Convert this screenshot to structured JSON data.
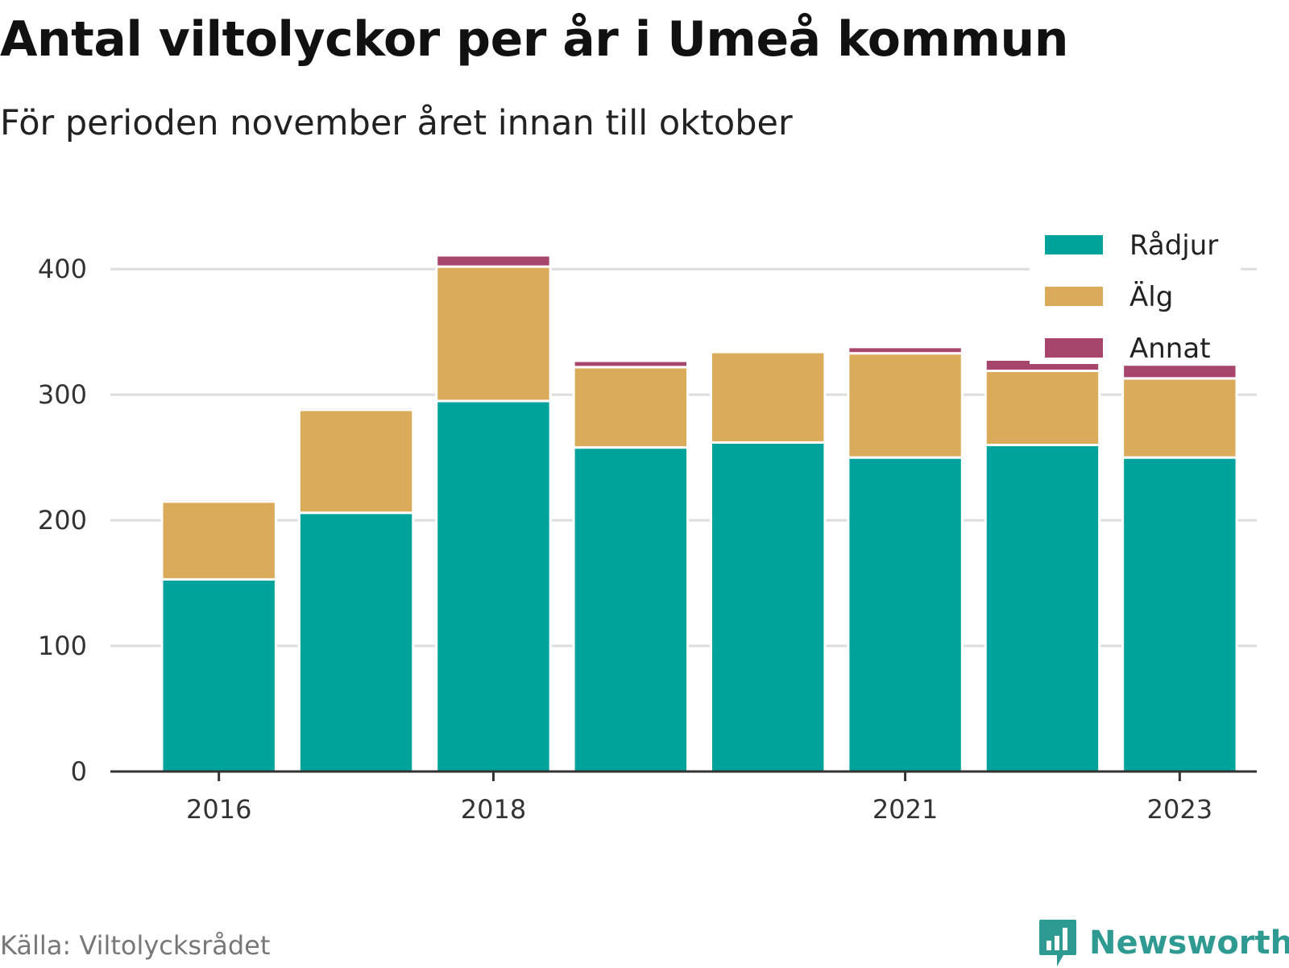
{
  "header": {
    "title": "Antal viltolyckor per år i Umeå kommun",
    "subtitle": "För perioden november året innan till oktober"
  },
  "footer": {
    "source": "Källa: Viltolycksrådet",
    "brand": "Newsworthy",
    "brand_icon": "bar-chart-speech-bubble-icon"
  },
  "chart_data": {
    "type": "bar",
    "stacked": true,
    "categories": [
      "2016",
      "2017",
      "2018",
      "2019",
      "2020",
      "2021",
      "2022",
      "2023"
    ],
    "x_tick_labels": [
      "2016",
      "",
      "2018",
      "",
      "",
      "2021",
      "",
      "2023"
    ],
    "series": [
      {
        "name": "Rådjur",
        "color": "#00a39b",
        "values": [
          153,
          206,
          295,
          258,
          262,
          250,
          260,
          250
        ]
      },
      {
        "name": "Älg",
        "color": "#daab5a",
        "values": [
          62,
          82,
          107,
          64,
          72,
          83,
          59,
          63
        ]
      },
      {
        "name": "Annat",
        "color": "#a8456c",
        "values": [
          2,
          2,
          9,
          5,
          0,
          5,
          9,
          11
        ]
      }
    ],
    "y_ticks": [
      0,
      100,
      200,
      300,
      400
    ],
    "ylim": [
      0,
      420
    ],
    "grid": true,
    "legend_position": "top-right"
  }
}
